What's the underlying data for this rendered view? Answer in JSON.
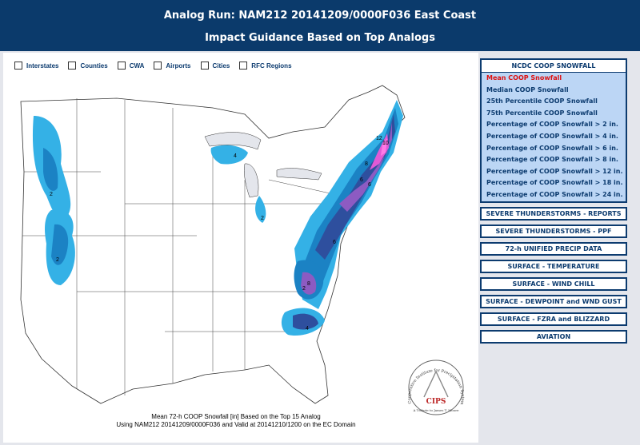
{
  "header": {
    "title": "Analog Run: NAM212 20141209/0000F036 East Coast",
    "subtitle": "Impact Guidance Based on Top Analogs"
  },
  "layers": [
    "Interstates",
    "Counties",
    "CWA",
    "Airports",
    "Cities",
    "RFC Regions"
  ],
  "map": {
    "contour_labels": [
      "2",
      "2",
      "2",
      "4",
      "8",
      "12",
      "10",
      "6",
      "6",
      "6",
      "2",
      "8",
      "4"
    ],
    "colors": {
      "light": "#34b1e6",
      "mid": "#1b82c4",
      "dark": "#2e4f9e",
      "purple": "#8d5bc2",
      "magenta": "#e15ad6",
      "pink": "#ff7be6"
    }
  },
  "caption": {
    "line1": "Mean 72-h COOP Snowfall [in] Based on the Top 15 Analog",
    "line2": "Using NAM212 20141209/0000F036 and Valid at 20141210/1200 on the EC Domain"
  },
  "logo": {
    "ring_text": "Cooperative Institute for Precipitation Systems",
    "name": "CIPS",
    "tribute": "A Tribute to James T. Moore"
  },
  "sidebar": {
    "section_title": "NCDC COOP SNOWFALL",
    "items": [
      "Mean COOP Snowfall",
      "Median COOP Snowfall",
      "25th Percentile COOP Snowfall",
      "75th Percentile COOP Snowfall",
      "Percentage of COOP Snowfall > 2 in.",
      "Percentage of COOP Snowfall > 4 in.",
      "Percentage of COOP Snowfall > 6 in.",
      "Percentage of COOP Snowfall > 8 in.",
      "Percentage of COOP Snowfall > 12 in.",
      "Percentage of COOP Snowfall > 18 in.",
      "Percentage of COOP Snowfall > 24 in."
    ],
    "buttons": [
      "SEVERE THUNDERSTORMS - REPORTS",
      "SEVERE THUNDERSTORMS - PPF",
      "72-h UNIFIED PRECIP DATA",
      "SURFACE - TEMPERATURE",
      "SURFACE - WIND CHILL",
      "SURFACE - DEWPOINT and WND GUST",
      "SURFACE - FZRA and BLIZZARD",
      "AVIATION"
    ]
  }
}
